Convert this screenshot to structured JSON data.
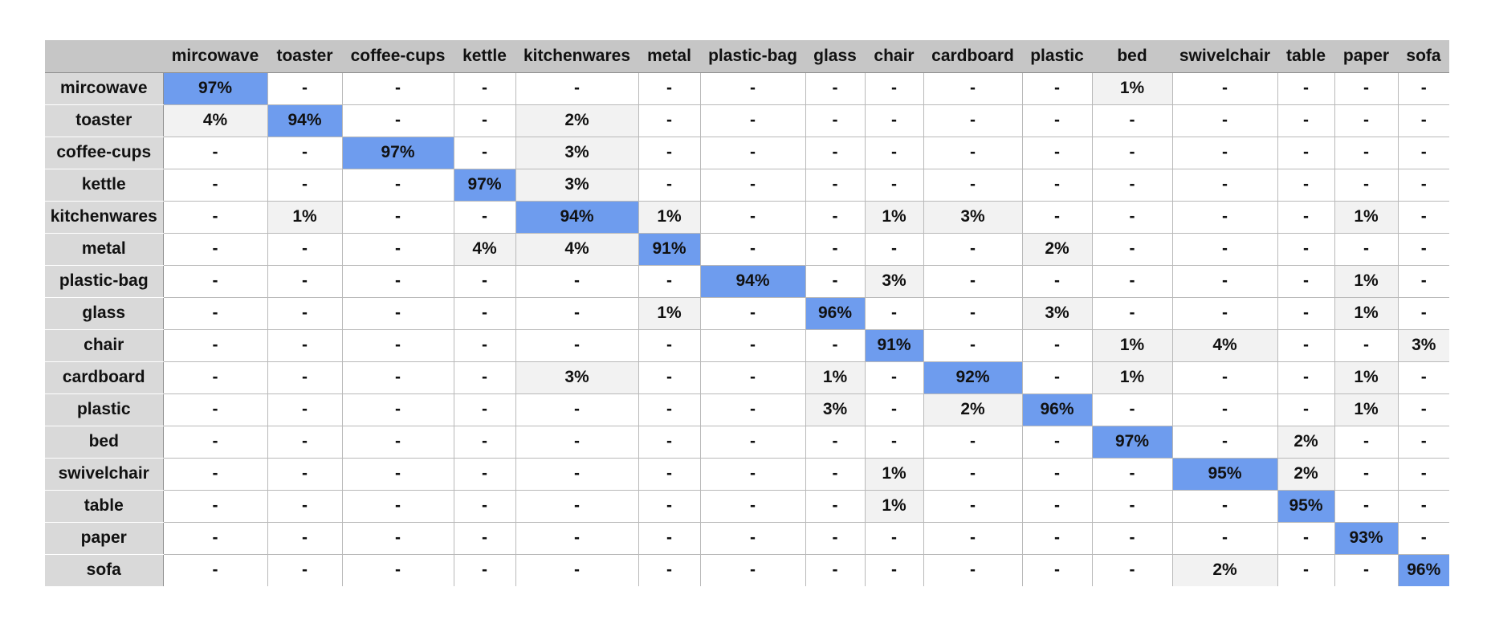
{
  "chart_data": {
    "type": "heatmap",
    "title": "",
    "xlabel": "",
    "ylabel": "",
    "categories": [
      "mircowave",
      "toaster",
      "coffee-cups",
      "kettle",
      "kitchenwares",
      "metal",
      "plastic-bag",
      "glass",
      "chair",
      "cardboard",
      "plastic",
      "bed",
      "swivelchair",
      "table",
      "paper",
      "sofa"
    ],
    "rows": [
      {
        "label": "mircowave",
        "values": [
          "97%",
          "-",
          "-",
          "-",
          "-",
          "-",
          "-",
          "-",
          "-",
          "-",
          "-",
          "1%",
          "-",
          "-",
          "-",
          "-"
        ]
      },
      {
        "label": "toaster",
        "values": [
          "4%",
          "94%",
          "-",
          "-",
          "2%",
          "-",
          "-",
          "-",
          "-",
          "-",
          "-",
          "-",
          "-",
          "-",
          "-",
          "-"
        ]
      },
      {
        "label": "coffee-cups",
        "values": [
          "-",
          "-",
          "97%",
          "-",
          "3%",
          "-",
          "-",
          "-",
          "-",
          "-",
          "-",
          "-",
          "-",
          "-",
          "-",
          "-"
        ]
      },
      {
        "label": "kettle",
        "values": [
          "-",
          "-",
          "-",
          "97%",
          "3%",
          "-",
          "-",
          "-",
          "-",
          "-",
          "-",
          "-",
          "-",
          "-",
          "-",
          "-"
        ]
      },
      {
        "label": "kitchenwares",
        "values": [
          "-",
          "1%",
          "-",
          "-",
          "94%",
          "1%",
          "-",
          "-",
          "1%",
          "3%",
          "-",
          "-",
          "-",
          "-",
          "1%",
          "-"
        ]
      },
      {
        "label": "metal",
        "values": [
          "-",
          "-",
          "-",
          "4%",
          "4%",
          "91%",
          "-",
          "-",
          "-",
          "-",
          "2%",
          "-",
          "-",
          "-",
          "-",
          "-"
        ]
      },
      {
        "label": "plastic-bag",
        "values": [
          "-",
          "-",
          "-",
          "-",
          "-",
          "-",
          "94%",
          "-",
          "3%",
          "-",
          "-",
          "-",
          "-",
          "-",
          "1%",
          "-"
        ]
      },
      {
        "label": "glass",
        "values": [
          "-",
          "-",
          "-",
          "-",
          "-",
          "1%",
          "-",
          "96%",
          "-",
          "-",
          "3%",
          "-",
          "-",
          "-",
          "1%",
          "-"
        ]
      },
      {
        "label": "chair",
        "values": [
          "-",
          "-",
          "-",
          "-",
          "-",
          "-",
          "-",
          "-",
          "91%",
          "-",
          "-",
          "1%",
          "4%",
          "-",
          "-",
          "3%"
        ]
      },
      {
        "label": "cardboard",
        "values": [
          "-",
          "-",
          "-",
          "-",
          "3%",
          "-",
          "-",
          "1%",
          "-",
          "92%",
          "-",
          "1%",
          "-",
          "-",
          "1%",
          "-"
        ]
      },
      {
        "label": "plastic",
        "values": [
          "-",
          "-",
          "-",
          "-",
          "-",
          "-",
          "-",
          "3%",
          "-",
          "2%",
          "96%",
          "-",
          "-",
          "-",
          "1%",
          "-"
        ]
      },
      {
        "label": "bed",
        "values": [
          "-",
          "-",
          "-",
          "-",
          "-",
          "-",
          "-",
          "-",
          "-",
          "-",
          "-",
          "97%",
          "-",
          "2%",
          "-",
          "-"
        ]
      },
      {
        "label": "swivelchair",
        "values": [
          "-",
          "-",
          "-",
          "-",
          "-",
          "-",
          "-",
          "-",
          "1%",
          "-",
          "-",
          "-",
          "95%",
          "2%",
          "-",
          "-"
        ]
      },
      {
        "label": "table",
        "values": [
          "-",
          "-",
          "-",
          "-",
          "-",
          "-",
          "-",
          "-",
          "1%",
          "-",
          "-",
          "-",
          "-",
          "95%",
          "-",
          "-"
        ]
      },
      {
        "label": "paper",
        "values": [
          "-",
          "-",
          "-",
          "-",
          "-",
          "-",
          "-",
          "-",
          "-",
          "-",
          "-",
          "-",
          "-",
          "-",
          "93%",
          "-"
        ]
      },
      {
        "label": "sofa",
        "values": [
          "-",
          "-",
          "-",
          "-",
          "-",
          "-",
          "-",
          "-",
          "-",
          "-",
          "-",
          "-",
          "2%",
          "-",
          "-",
          "96%"
        ]
      }
    ],
    "colors": {
      "diagonal": "#6e9cee",
      "off_diagonal_nonzero": "#f2f2f2",
      "empty": "#ffffff",
      "header": "#c6c6c6",
      "row_header": "#d9d9d9"
    }
  }
}
